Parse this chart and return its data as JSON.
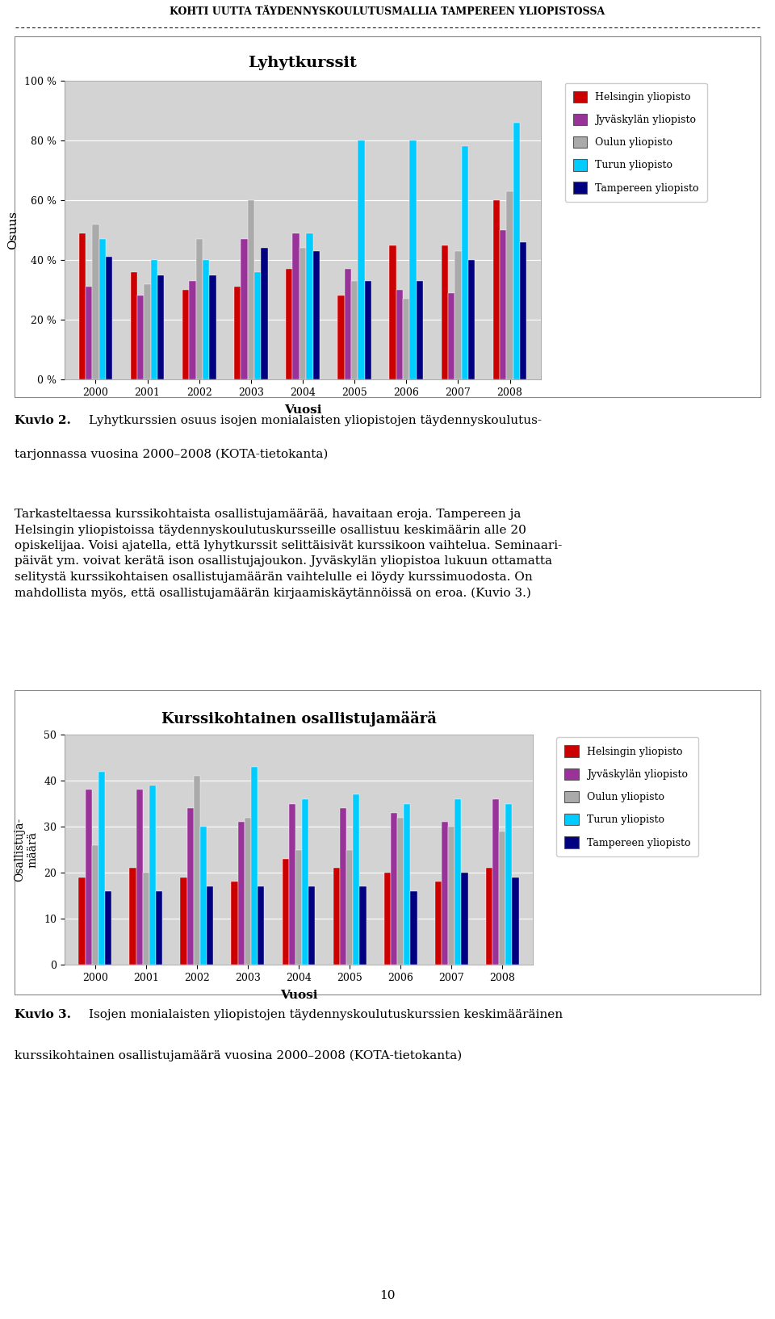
{
  "page_title": "KOHTI UUTTA TÄYDENNYSKOULUTUSMALLIA TAMPEREEN YLIOPISTOSSA",
  "chart1_title": "Lyhytkurssit",
  "chart1_ylabel": "Osuus",
  "chart1_xlabel": "Vuosi",
  "chart1_years": [
    2000,
    2001,
    2002,
    2003,
    2004,
    2005,
    2006,
    2007,
    2008
  ],
  "chart1_data": {
    "Helsingin yliopisto": [
      49,
      36,
      30,
      31,
      37,
      28,
      45,
      45,
      60
    ],
    "Jyväskylän yliopisto": [
      31,
      28,
      33,
      47,
      49,
      37,
      30,
      29,
      50
    ],
    "Oulun yliopisto": [
      52,
      32,
      47,
      60,
      44,
      33,
      27,
      43,
      63
    ],
    "Turun yliopisto": [
      47,
      40,
      40,
      36,
      49,
      80,
      80,
      78,
      86
    ],
    "Tampereen yliopisto": [
      41,
      35,
      35,
      44,
      43,
      33,
      33,
      40,
      46
    ]
  },
  "chart1_ylim": [
    0,
    100
  ],
  "chart1_yticks": [
    0,
    20,
    40,
    60,
    80,
    100
  ],
  "chart1_ytick_labels": [
    "0 %",
    "20 %",
    "40 %",
    "60 %",
    "80 %",
    "100 %"
  ],
  "chart2_title": "Kurssikohtainen osallistujamäärä",
  "chart2_ylabel": "Osallistuja-\nmäärä",
  "chart2_xlabel": "Vuosi",
  "chart2_years": [
    2000,
    2001,
    2002,
    2003,
    2004,
    2005,
    2006,
    2007,
    2008
  ],
  "chart2_data": {
    "Helsingin yliopisto": [
      19,
      21,
      19,
      18,
      23,
      21,
      20,
      18,
      21
    ],
    "Jyväskylän yliopisto": [
      38,
      38,
      34,
      31,
      35,
      34,
      33,
      31,
      36
    ],
    "Oulun yliopisto": [
      26,
      20,
      41,
      32,
      25,
      25,
      32,
      30,
      29
    ],
    "Turun yliopisto": [
      42,
      39,
      30,
      43,
      36,
      37,
      35,
      36,
      35
    ],
    "Tampereen yliopisto": [
      16,
      16,
      17,
      17,
      17,
      17,
      16,
      20,
      19
    ]
  },
  "chart2_ylim": [
    0,
    50
  ],
  "chart2_yticks": [
    0,
    10,
    20,
    30,
    40,
    50
  ],
  "colors": {
    "Helsingin yliopisto": "#CC0000",
    "Jyväskylän yliopisto": "#993399",
    "Oulun yliopisto": "#AAAAAA",
    "Turun yliopisto": "#00CCFF",
    "Tampereen yliopisto": "#000080"
  },
  "page_number": "10",
  "plot_bg": "#D3D3D3"
}
